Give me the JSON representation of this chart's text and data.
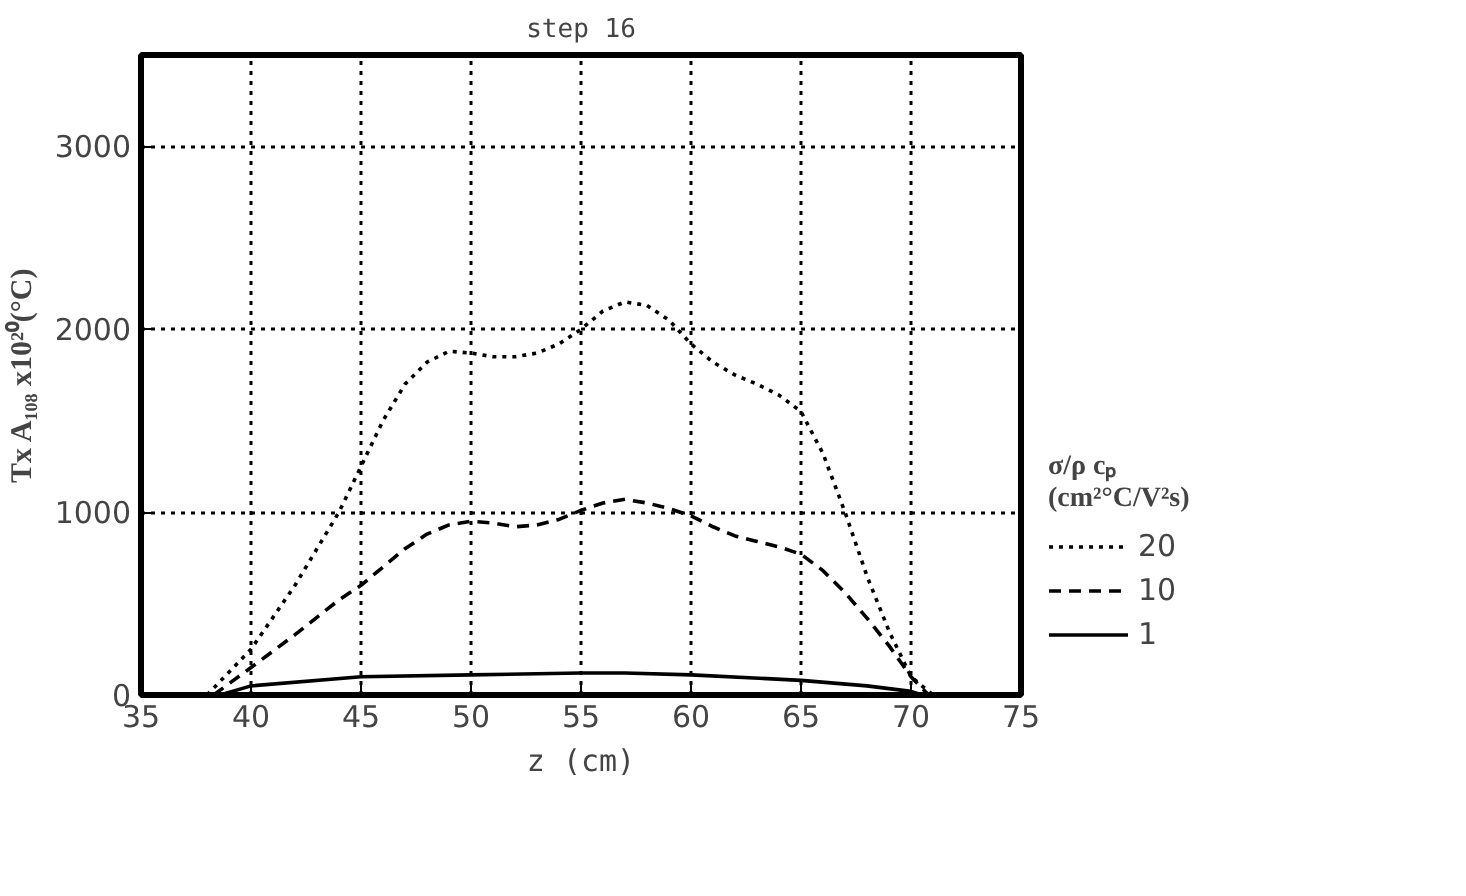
{
  "chart_data": {
    "type": "line",
    "title": "step 16",
    "xlabel": "z (cm)",
    "ylabel": "Tx A₁₀₈ x10²⁰(°C)",
    "legend_title": "σ/ρ cₚ\n(cm²°C/V²s)",
    "xlim": [
      35,
      75
    ],
    "xticks": [
      35,
      40,
      45,
      50,
      55,
      60,
      65,
      70,
      75
    ],
    "ylim": [
      0,
      3500
    ],
    "yticks": [
      0,
      1000,
      2000,
      3000
    ],
    "grid": true,
    "legend": "bottom right",
    "marker": "none",
    "series": [
      {
        "name": "20",
        "color": "#000000",
        "line_style": "dotted",
        "x": [
          38,
          40,
          42,
          44,
          45,
          46,
          47,
          48,
          49,
          50,
          51,
          52,
          53,
          54,
          55,
          56,
          57,
          58,
          59,
          60,
          61,
          62,
          63,
          64,
          65,
          66,
          67,
          68,
          69,
          70,
          71
        ],
        "values": [
          0,
          250,
          600,
          1000,
          1250,
          1500,
          1700,
          1820,
          1880,
          1870,
          1850,
          1850,
          1870,
          1920,
          2000,
          2100,
          2150,
          2130,
          2050,
          1920,
          1820,
          1750,
          1700,
          1640,
          1550,
          1320,
          1000,
          650,
          350,
          100,
          0
        ]
      },
      {
        "name": "10",
        "color": "#000000",
        "line_style": "dashed",
        "x": [
          38.3,
          40,
          42,
          44,
          45,
          46,
          47,
          48,
          49,
          50,
          51,
          52,
          53,
          54,
          55,
          56,
          57,
          58,
          59,
          60,
          61,
          62,
          63,
          64,
          65,
          66,
          67,
          68,
          69,
          70,
          70.8
        ],
        "values": [
          0,
          150,
          330,
          520,
          600,
          700,
          800,
          880,
          930,
          950,
          940,
          920,
          930,
          960,
          1010,
          1050,
          1070,
          1050,
          1020,
          980,
          920,
          870,
          840,
          810,
          770,
          680,
          560,
          420,
          270,
          100,
          0
        ]
      },
      {
        "name": "1",
        "color": "#000000",
        "line_style": "solid",
        "x": [
          38.6,
          40,
          45,
          50,
          55,
          57,
          60,
          65,
          68,
          70,
          70.5
        ],
        "values": [
          0,
          50,
          100,
          110,
          120,
          120,
          110,
          80,
          50,
          20,
          0
        ]
      }
    ]
  }
}
